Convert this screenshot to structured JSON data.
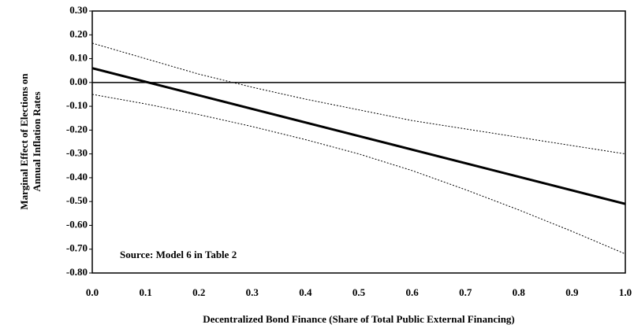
{
  "chart_data": {
    "type": "line",
    "ylabel": [
      "Marginal Effect of Elections on",
      "Annual Inflation Rates"
    ],
    "xlabel": "Decentralized Bond Finance (Share of Total Public External Financing)",
    "annotation": "Source: Model 6 in Table 2",
    "x": [
      0,
      0.1,
      0.2,
      0.3,
      0.4,
      0.5,
      0.6,
      0.7,
      0.8,
      0.9,
      1.0
    ],
    "series": [
      {
        "color": "#000000",
        "style": "solid",
        "values": [
          0.06,
          0.003,
          -0.054,
          -0.111,
          -0.168,
          -0.225,
          -0.282,
          -0.339,
          -0.396,
          -0.453,
          -0.51
        ]
      },
      {
        "color": "#000000",
        "style": "dotted",
        "values": [
          0.165,
          0.1,
          0.035,
          -0.02,
          -0.07,
          -0.115,
          -0.16,
          -0.195,
          -0.23,
          -0.265,
          -0.3
        ]
      },
      {
        "color": "#000000",
        "style": "dotted",
        "values": [
          -0.05,
          -0.09,
          -0.135,
          -0.185,
          -0.24,
          -0.3,
          -0.37,
          -0.45,
          -0.535,
          -0.625,
          -0.72
        ]
      }
    ],
    "xlim": [
      0,
      1
    ],
    "ylim": [
      -0.8,
      0.3
    ],
    "xticks": [
      {
        "value": 0,
        "label": "0.0"
      },
      0.1,
      0.2,
      0.3,
      0.4,
      0.5,
      0.6,
      0.7,
      0.8,
      0.9,
      {
        "value": 1,
        "label": "1.0"
      }
    ],
    "yticks": [
      {
        "value": 0.3,
        "label": "0.30"
      },
      {
        "value": 0.2,
        "label": "0.20"
      },
      {
        "value": 0.1,
        "label": "0.10"
      },
      {
        "value": 0,
        "label": "0.00"
      },
      {
        "value": -0.1,
        "label": "-0.10"
      },
      {
        "value": -0.2,
        "label": "-0.20"
      },
      {
        "value": -0.3,
        "label": "-0.30"
      },
      {
        "value": -0.4,
        "label": "-0.40"
      },
      {
        "value": -0.5,
        "label": "-0.50"
      },
      {
        "value": -0.6,
        "label": "-0.60"
      },
      {
        "value": -0.7,
        "label": "-0.70"
      },
      {
        "value": -0.8,
        "label": "-0.80"
      }
    ],
    "grid": false
  }
}
